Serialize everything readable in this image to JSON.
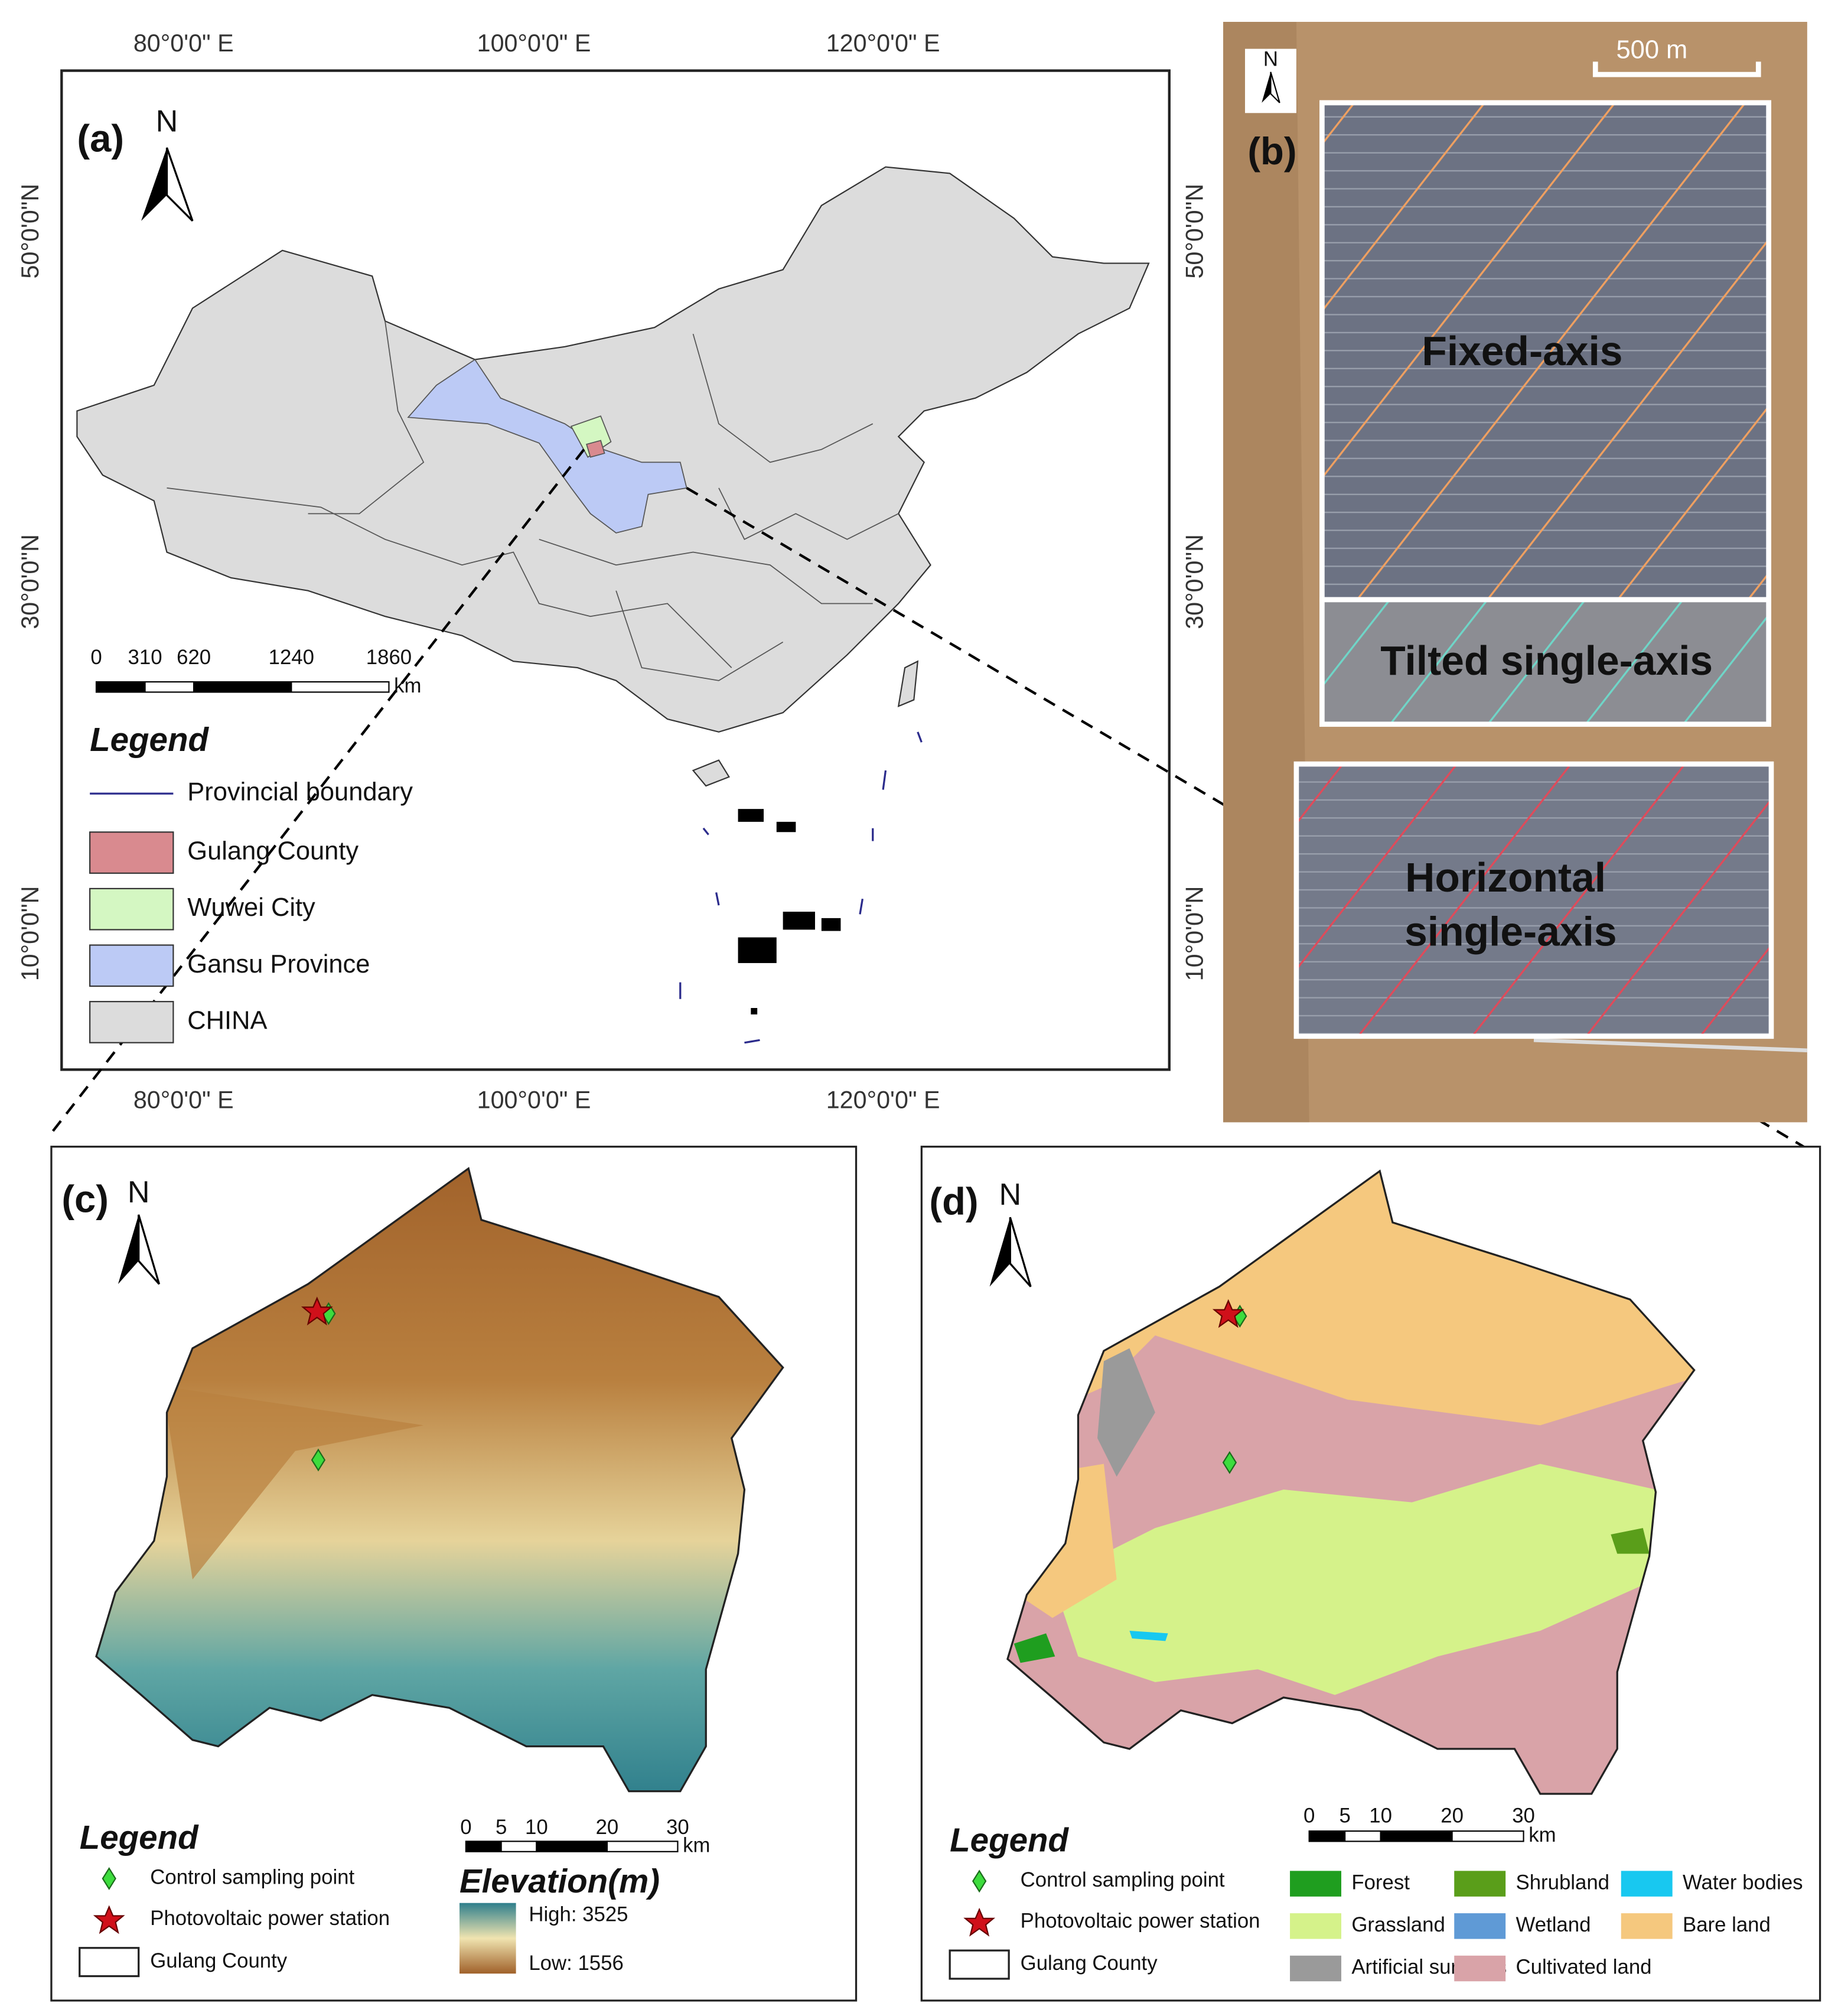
{
  "panel_a": {
    "label": "(a)",
    "north": "N",
    "lon_labels": [
      "80°0'0\" E",
      "100°0'0\" E",
      "120°0'0\" E"
    ],
    "lat_labels": [
      "50°0'0\"N",
      "30°0'0\"N",
      "10°0'0\"N"
    ],
    "scale_labels": [
      "0",
      "310",
      "620",
      "1240",
      "1860"
    ],
    "scale_unit": "km",
    "legend_title": "Legend",
    "boundary": {
      "label": "Provincial boundary",
      "color": "#2b2b8c"
    },
    "legend": [
      {
        "label": "Gulang County",
        "color": "#d98a8f"
      },
      {
        "label": "Wuwei City",
        "color": "#d4f7c2"
      },
      {
        "label": "Gansu Province",
        "color": "#bccaf5"
      },
      {
        "label": "CHINA",
        "color": "#dcdcdc"
      }
    ]
  },
  "panel_b": {
    "label": "(b)",
    "north": "N",
    "scale_label": "500 m",
    "zones": [
      "Fixed-axis",
      "Tilted single-axis"
    ],
    "horizontal": [
      "Horizontal",
      "single-axis"
    ]
  },
  "panel_c": {
    "label": "(c)",
    "north": "N",
    "legend_title": "Legend",
    "legend": [
      "Control sampling point",
      "Photovoltaic power station",
      "Gulang County"
    ],
    "scale_labels": [
      "0",
      "5",
      "10",
      "20",
      "30"
    ],
    "scale_unit": "km",
    "elevation_title": "Elevation(m)",
    "high": "High: 3525",
    "low": "Low: 1556"
  },
  "panel_d": {
    "label": "(d)",
    "north": "N",
    "legend_title": "Legend",
    "legend": [
      "Control sampling point",
      "Photovoltaic power station",
      "Gulang County"
    ],
    "scale_labels": [
      "0",
      "5",
      "10",
      "20",
      "30"
    ],
    "scale_unit": "km",
    "land_cover": [
      {
        "label": "Forest",
        "color": "#1f9e1f"
      },
      {
        "label": "Grassland",
        "color": "#d5f28a"
      },
      {
        "label": "Artificial surfaces",
        "color": "#9a9a9a"
      },
      {
        "label": "Shrubland",
        "color": "#5a9e1a"
      },
      {
        "label": "Wetland",
        "color": "#5f9ad6"
      },
      {
        "label": "Cultivated land",
        "color": "#d9a3a8"
      },
      {
        "label": "Water bodies",
        "color": "#18c8f0"
      },
      {
        "label": "Bare land",
        "color": "#f5c87e"
      }
    ]
  }
}
